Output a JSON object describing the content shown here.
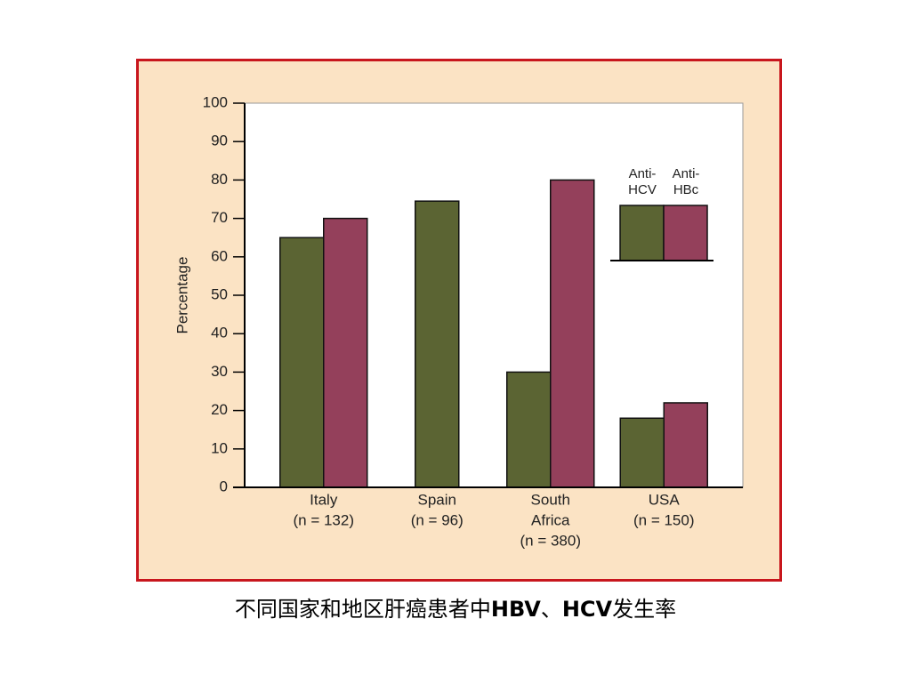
{
  "chart_data": {
    "type": "bar",
    "ylabel": "Percentage",
    "categories": [
      [
        "Italy",
        "(n = 132)"
      ],
      [
        "Spain",
        "(n = 96)"
      ],
      [
        "South",
        "Africa",
        "(n = 380)"
      ],
      [
        "USA",
        "(n = 150)"
      ]
    ],
    "series": [
      {
        "name": "Anti-HCV",
        "color": "#5b6433",
        "values": [
          65,
          74.5,
          30,
          18
        ]
      },
      {
        "name": "Anti-HBc",
        "color": "#94405b",
        "values": [
          70,
          null,
          80,
          22
        ]
      }
    ],
    "ylim": [
      0,
      100
    ],
    "yticks": [
      0,
      10,
      20,
      30,
      40,
      50,
      60,
      70,
      80,
      90,
      100
    ],
    "legend": "upper right"
  },
  "caption": [
    "不同国家和地区肝癌患者中",
    "HBV",
    "、",
    "HCV",
    "发生率"
  ]
}
